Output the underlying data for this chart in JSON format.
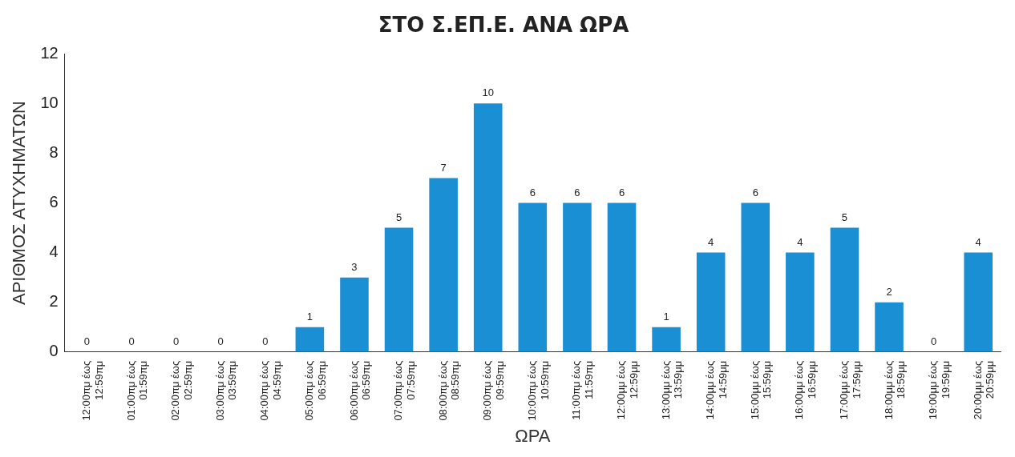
{
  "chart_data": {
    "type": "bar",
    "title": "ΣΤΟ Σ.ΕΠ.Ε. ΑΝΑ ΩΡΑ",
    "xlabel": "ΩΡΑ",
    "ylabel": "ΑΡΙΘΜΟΣ ΑΤΥΧΗΜΑΤΩΝ",
    "categories": [
      "12:00πμ έως 12:59πμ",
      "01:00πμ έως 01:59πμ",
      "02:00πμ έως 02:59πμ",
      "03:00πμ έως 03:59πμ",
      "04:00πμ έως 04:59πμ",
      "05:00πμ έως 06:59πμ",
      "06:00πμ έως 06:59πμ",
      "07:00πμ έως 07:59πμ",
      "08:00πμ έως 08:59πμ",
      "09:00πμ έως 09:59πμ",
      "10:00πμ έως 10:59πμ",
      "11:00πμ έως 11:59πμ",
      "12:00μμ έως 12:59μμ",
      "13:00μμ έως 13:59μμ",
      "14:00μμ έως 14:59μμ",
      "15:00μμ έως 15:59μμ",
      "16:00μμ έως 16:59μμ",
      "17:00μμ έως 17:59μμ",
      "18:00μμ έως 18:59μμ",
      "19:00μμ έως 19:59μμ",
      "20:00μμ έως 20:59μμ"
    ],
    "values": [
      0,
      0,
      0,
      0,
      0,
      1,
      3,
      5,
      7,
      10,
      6,
      6,
      6,
      1,
      4,
      6,
      4,
      5,
      2,
      0,
      4
    ],
    "color": "#1a8fd3",
    "ylim": [
      0,
      12
    ],
    "yticks": [
      0,
      2,
      4,
      6,
      8,
      10,
      12
    ],
    "grid": false,
    "data_labels": true
  }
}
